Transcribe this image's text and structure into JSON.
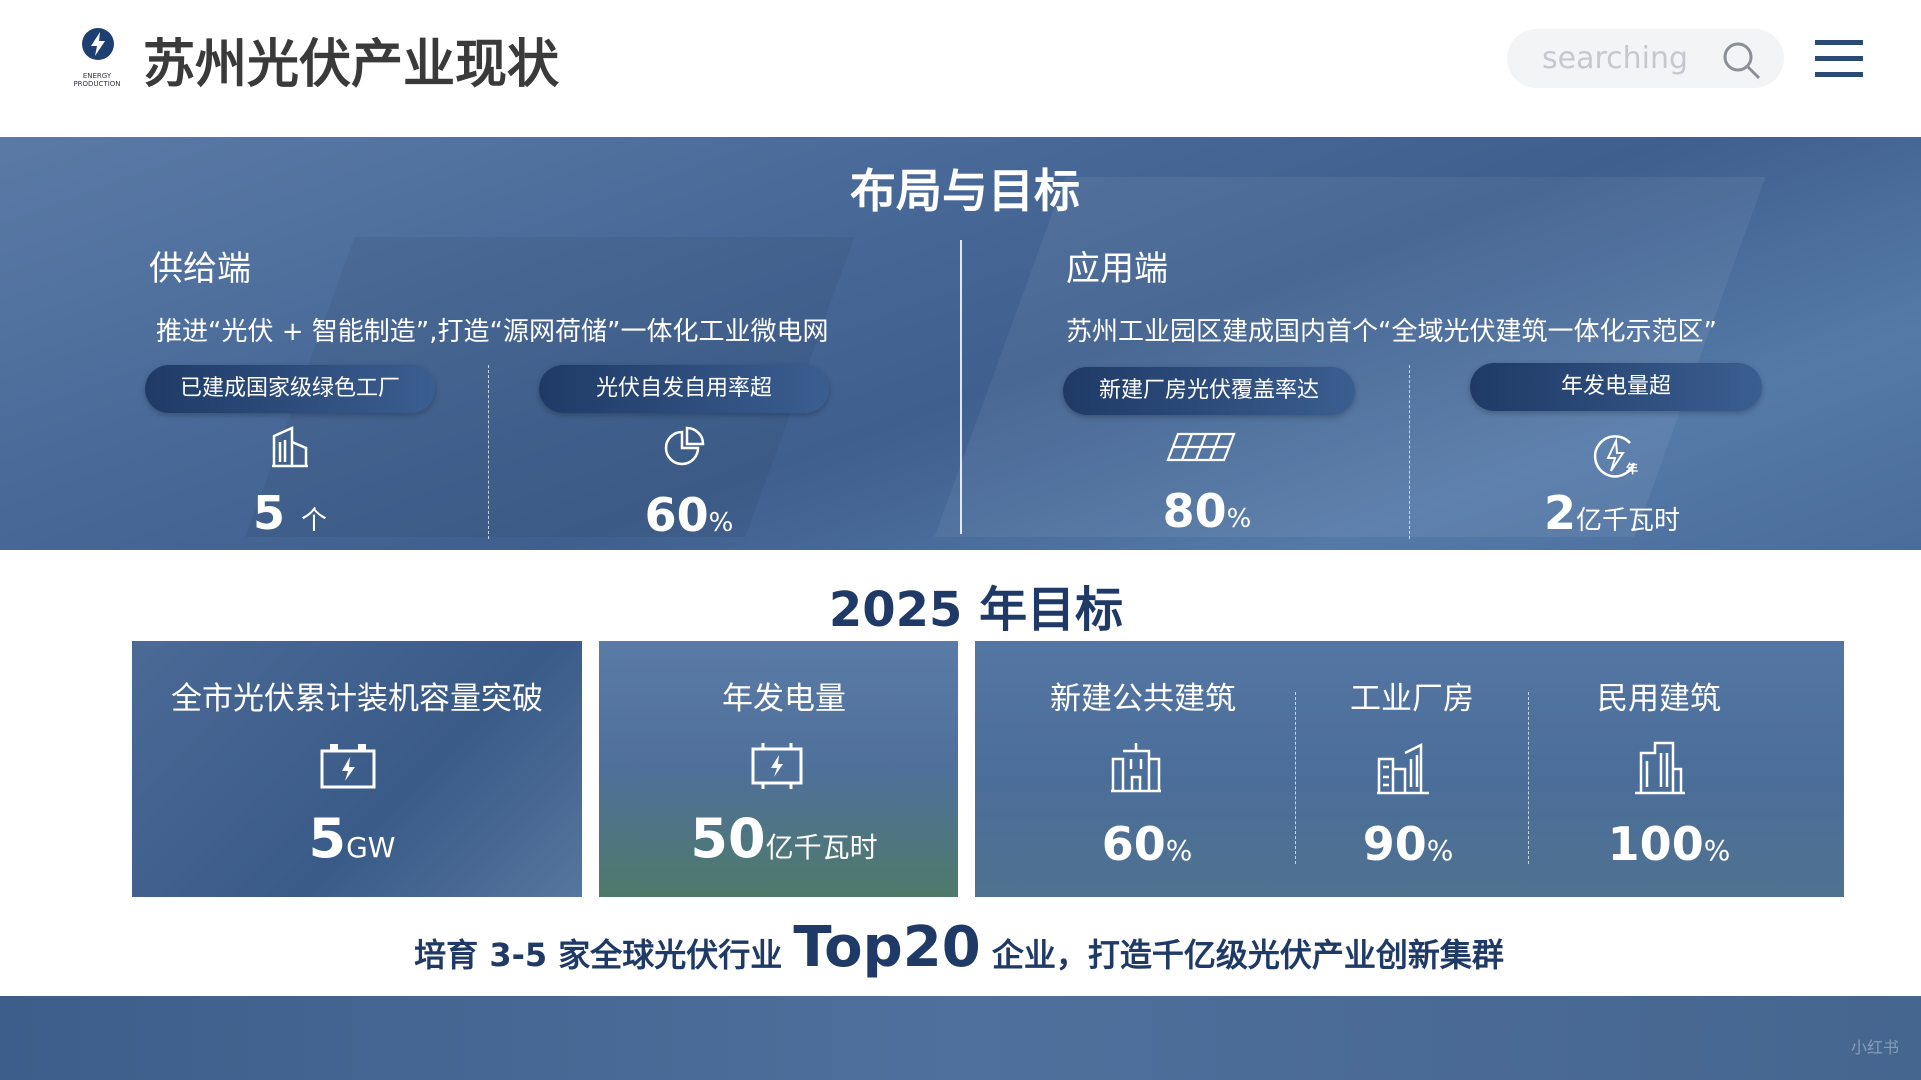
{
  "header": {
    "logo_lines": [
      "ENERGY",
      "PRODUCTION"
    ],
    "title": "苏州光伏产业现状",
    "search_placeholder": "searching"
  },
  "layout": {
    "title": "布局与目标",
    "columns": [
      {
        "heading": "供给端",
        "description": "推进“光伏 + 智能制造”,打造“源网荷储”一体化工业微电网",
        "items": [
          {
            "label": "已建成国家级绿色工厂",
            "value": "5",
            "unit": "个"
          },
          {
            "label": "光伏自发自用率超",
            "value": "60",
            "unit": "%"
          }
        ]
      },
      {
        "heading": "应用端",
        "description": "苏州工业园区建成国内首个“全域光伏建筑一体化示范区”",
        "items": [
          {
            "label": "新建厂房光伏覆盖率达",
            "value": "80",
            "unit": "%"
          },
          {
            "label": "年发电量超",
            "value": "2",
            "unit": "亿千瓦时"
          }
        ]
      }
    ]
  },
  "goals": {
    "title": "2025 年目标",
    "cards": [
      {
        "label": "全市光伏累计装机容量突破",
        "value": "5",
        "unit": "GW"
      },
      {
        "label": "年发电量",
        "value": "50",
        "unit": "亿千瓦时"
      }
    ],
    "ratios": [
      {
        "label": "新建公共建筑",
        "value": "60",
        "unit": "%"
      },
      {
        "label": "工业厂房",
        "value": "90",
        "unit": "%"
      },
      {
        "label": "民用建筑",
        "value": "100",
        "unit": "%"
      }
    ],
    "summary": {
      "before": "培育 3-5 家全球光伏行业",
      "highlight": "Top20",
      "after": "企业，打造千亿级光伏产业创新集群"
    }
  },
  "watermark": "小红书"
}
